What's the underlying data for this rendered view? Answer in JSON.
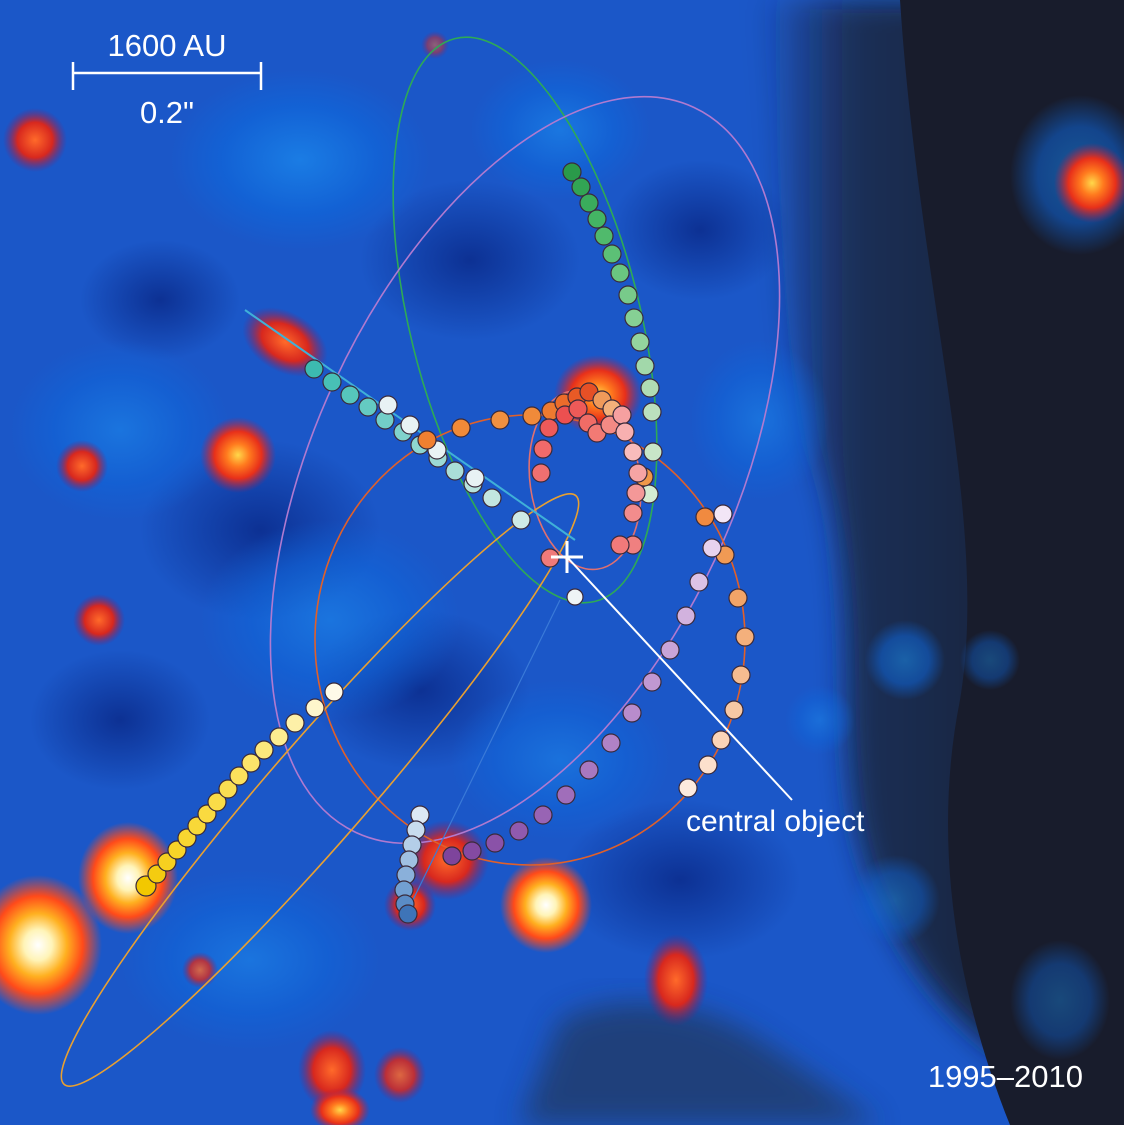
{
  "scale_bar": {
    "distance_label": "1600 AU",
    "angle_label": "0.2\""
  },
  "annotation": {
    "pointer_label": "central object"
  },
  "date_range": "1995–2010",
  "colors": {
    "background_blue": "#1b57c8",
    "background_dark": "#1c2030",
    "star_hot": "#ff5a1e",
    "star_core": "#fff2b0",
    "label": "#ffffff"
  }
}
